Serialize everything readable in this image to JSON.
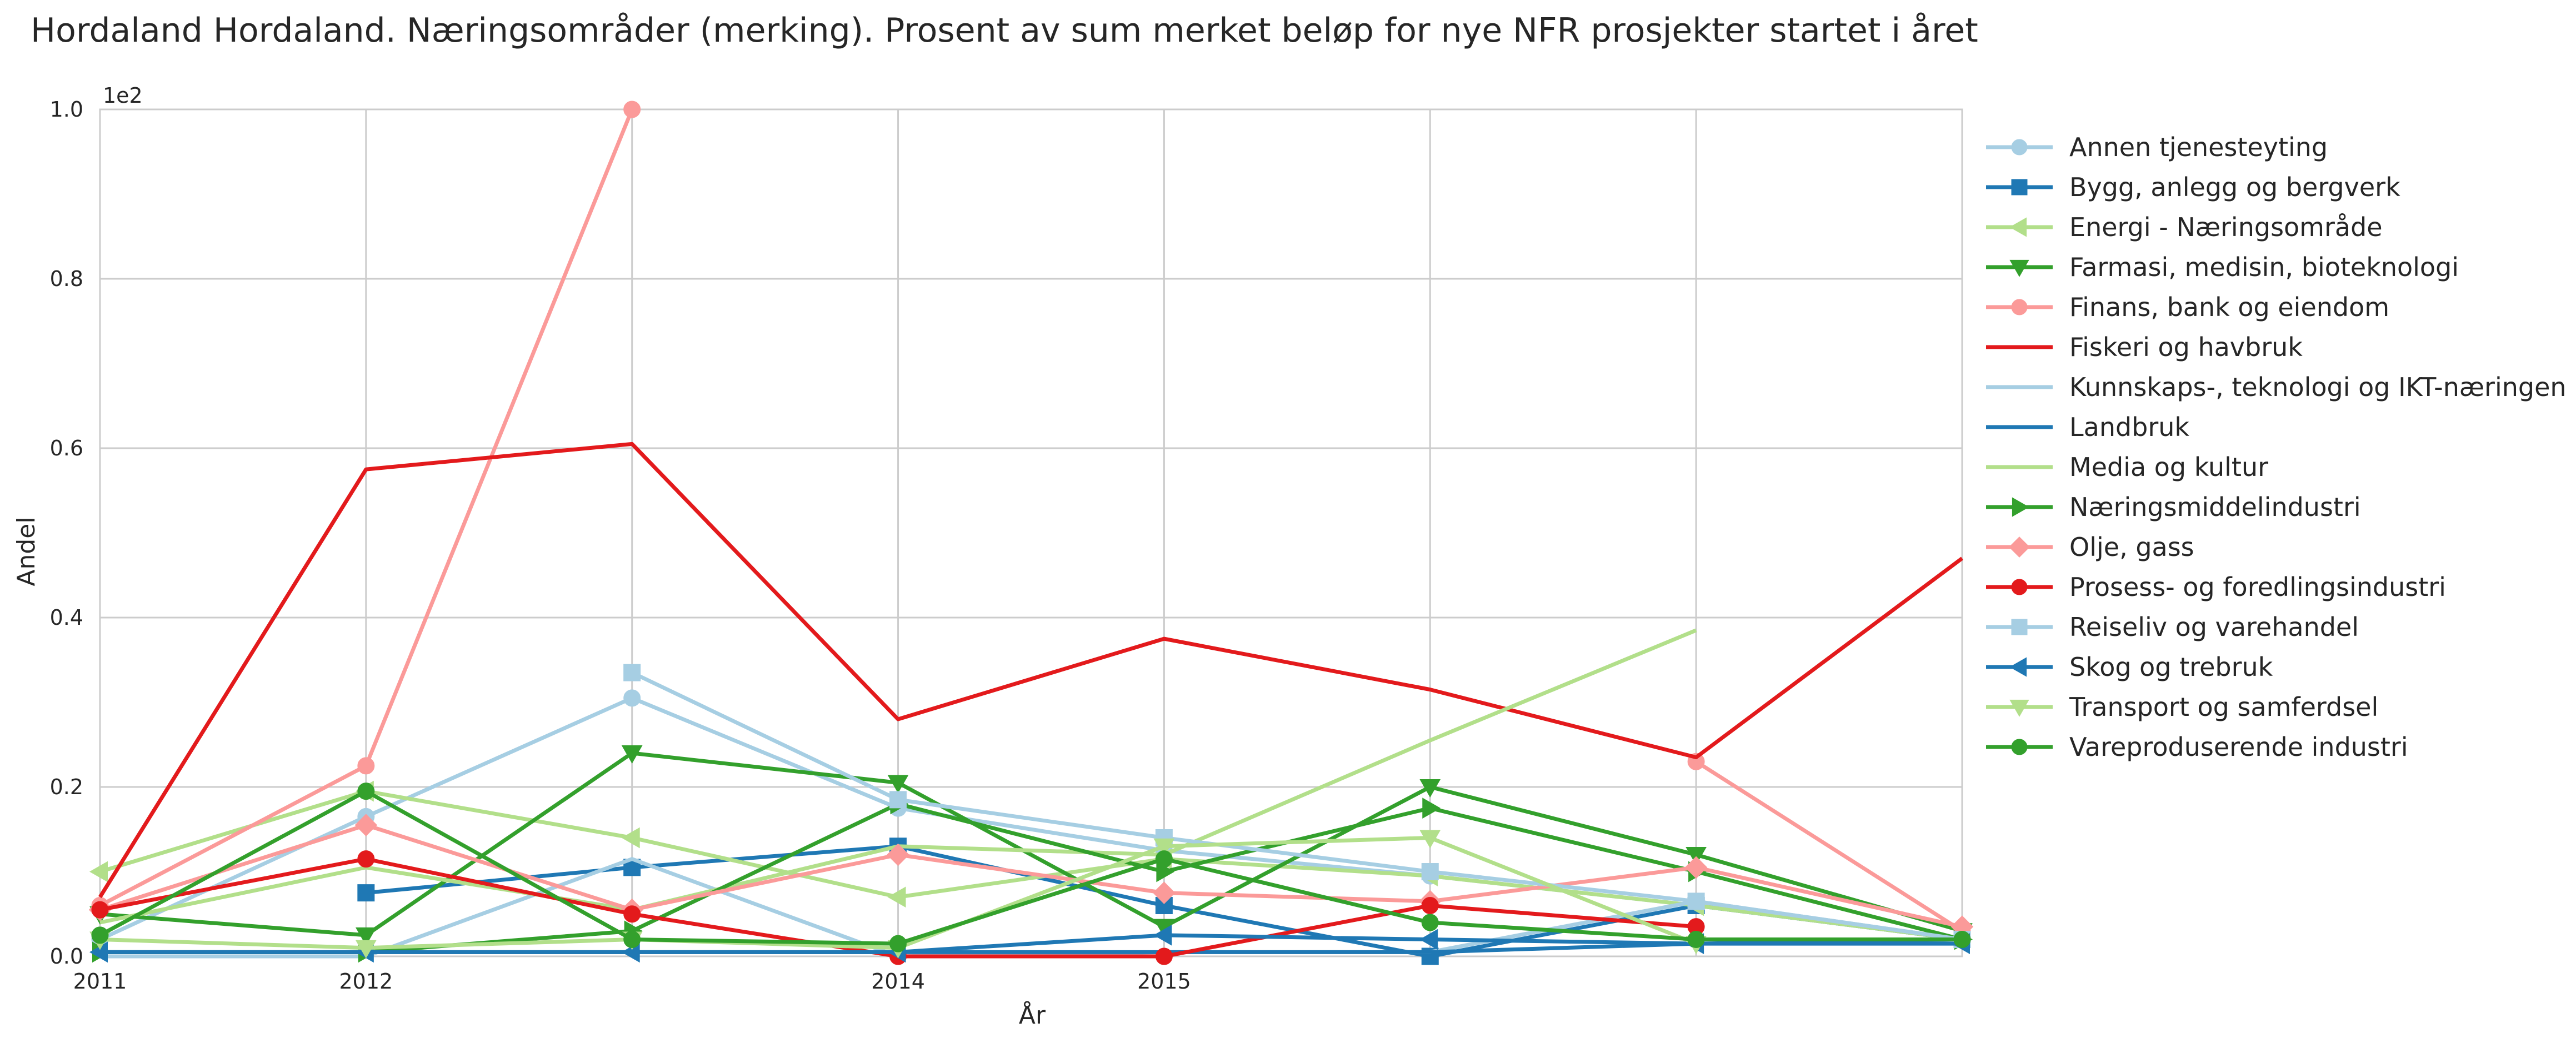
{
  "chart_data": {
    "type": "line",
    "title": "Hordaland Hordaland. Næringsområder (merking). Prosent av sum merket beløp for nye NFR prosjekter startet i året",
    "xlabel": "År",
    "ylabel": "Andel",
    "y_offset_label": "1e2",
    "x_tick_labels": [
      "2011",
      "2012",
      "2014",
      "2015"
    ],
    "y_tick_labels": [
      "0.0",
      "0.2",
      "0.4",
      "0.6",
      "0.8",
      "1.0"
    ],
    "ylim": [
      0,
      100
    ],
    "grid": true,
    "legend_position": "right",
    "x": [
      2011,
      2012,
      2013,
      2014,
      2015,
      2016,
      2017,
      2018
    ],
    "series": [
      {
        "name": "Annen tjenesteyting",
        "color": "#a6cee3",
        "marker": "circle",
        "values": [
          2,
          16.5,
          30.5,
          17.5,
          12.5,
          9.5,
          6,
          2
        ]
      },
      {
        "name": "Bygg, anlegg og bergverk",
        "color": "#1f78b4",
        "marker": "square",
        "values": [
          null,
          7.5,
          10.5,
          13,
          6,
          0,
          6,
          2
        ]
      },
      {
        "name": "Energi - Næringsområde",
        "color": "#b2df8a",
        "marker": "triangle-left",
        "values": [
          10,
          19.5,
          14,
          7,
          11.5,
          9.5,
          6,
          2
        ]
      },
      {
        "name": "Farmasi, medisin, bioteknologi",
        "color": "#33a02c",
        "marker": "triangle-down",
        "values": [
          5,
          2.5,
          24,
          20.5,
          3.5,
          20,
          12,
          3
        ]
      },
      {
        "name": "Finans, bank og eiendom",
        "color": "#fb9a99",
        "marker": "circle",
        "values": [
          6,
          22.5,
          100,
          null,
          null,
          null,
          23,
          3
        ]
      },
      {
        "name": "Fiskeri og havbruk",
        "color": "#e31a1c",
        "marker": "none",
        "values": [
          7,
          57.5,
          60.5,
          28,
          37.5,
          31.5,
          23.5,
          47
        ]
      },
      {
        "name": "Kunnskaps-, teknologi og IKT-næringen",
        "color": "#a6cee3",
        "marker": "none",
        "values": [
          0,
          0,
          11.5,
          0,
          0.5,
          0.5,
          6.5,
          2
        ]
      },
      {
        "name": "Landbruk",
        "color": "#1f78b4",
        "marker": "none",
        "values": [
          0.5,
          0.5,
          0.5,
          0.5,
          0.5,
          0.5,
          1.5,
          2
        ]
      },
      {
        "name": "Media og kultur",
        "color": "#b2df8a",
        "marker": "none",
        "values": [
          4,
          10.5,
          5.5,
          13,
          12,
          25.5,
          38.5,
          null
        ]
      },
      {
        "name": "Næringsmiddelindustri",
        "color": "#33a02c",
        "marker": "triangle-right",
        "values": [
          0.5,
          0.5,
          3,
          18,
          10,
          17.5,
          10,
          2
        ]
      },
      {
        "name": "Olje, gass",
        "color": "#fb9a99",
        "marker": "diamond",
        "values": [
          5.5,
          15.5,
          5.5,
          12,
          7.5,
          6.5,
          10.5,
          3.5
        ]
      },
      {
        "name": "Prosess- og foredlingsindustri",
        "color": "#e31a1c",
        "marker": "circle",
        "values": [
          5.5,
          11.5,
          5,
          0,
          0,
          6,
          3.5,
          null
        ]
      },
      {
        "name": "Reiseliv og varehandel",
        "color": "#a6cee3",
        "marker": "square",
        "values": [
          null,
          null,
          33.5,
          18.5,
          14,
          10,
          6.5,
          2
        ]
      },
      {
        "name": "Skog og trebruk",
        "color": "#1f78b4",
        "marker": "triangle-left",
        "values": [
          0.5,
          0.5,
          0.5,
          0.5,
          2.5,
          2,
          1.5,
          1.5
        ]
      },
      {
        "name": "Transport og samferdsel",
        "color": "#b2df8a",
        "marker": "triangle-down",
        "values": [
          2,
          1,
          2,
          1,
          13,
          14,
          1.5,
          null
        ]
      },
      {
        "name": "Vareproduserende industri",
        "color": "#33a02c",
        "marker": "circle",
        "values": [
          2.5,
          19.5,
          2,
          1.5,
          11.5,
          4,
          2,
          2
        ]
      }
    ]
  }
}
